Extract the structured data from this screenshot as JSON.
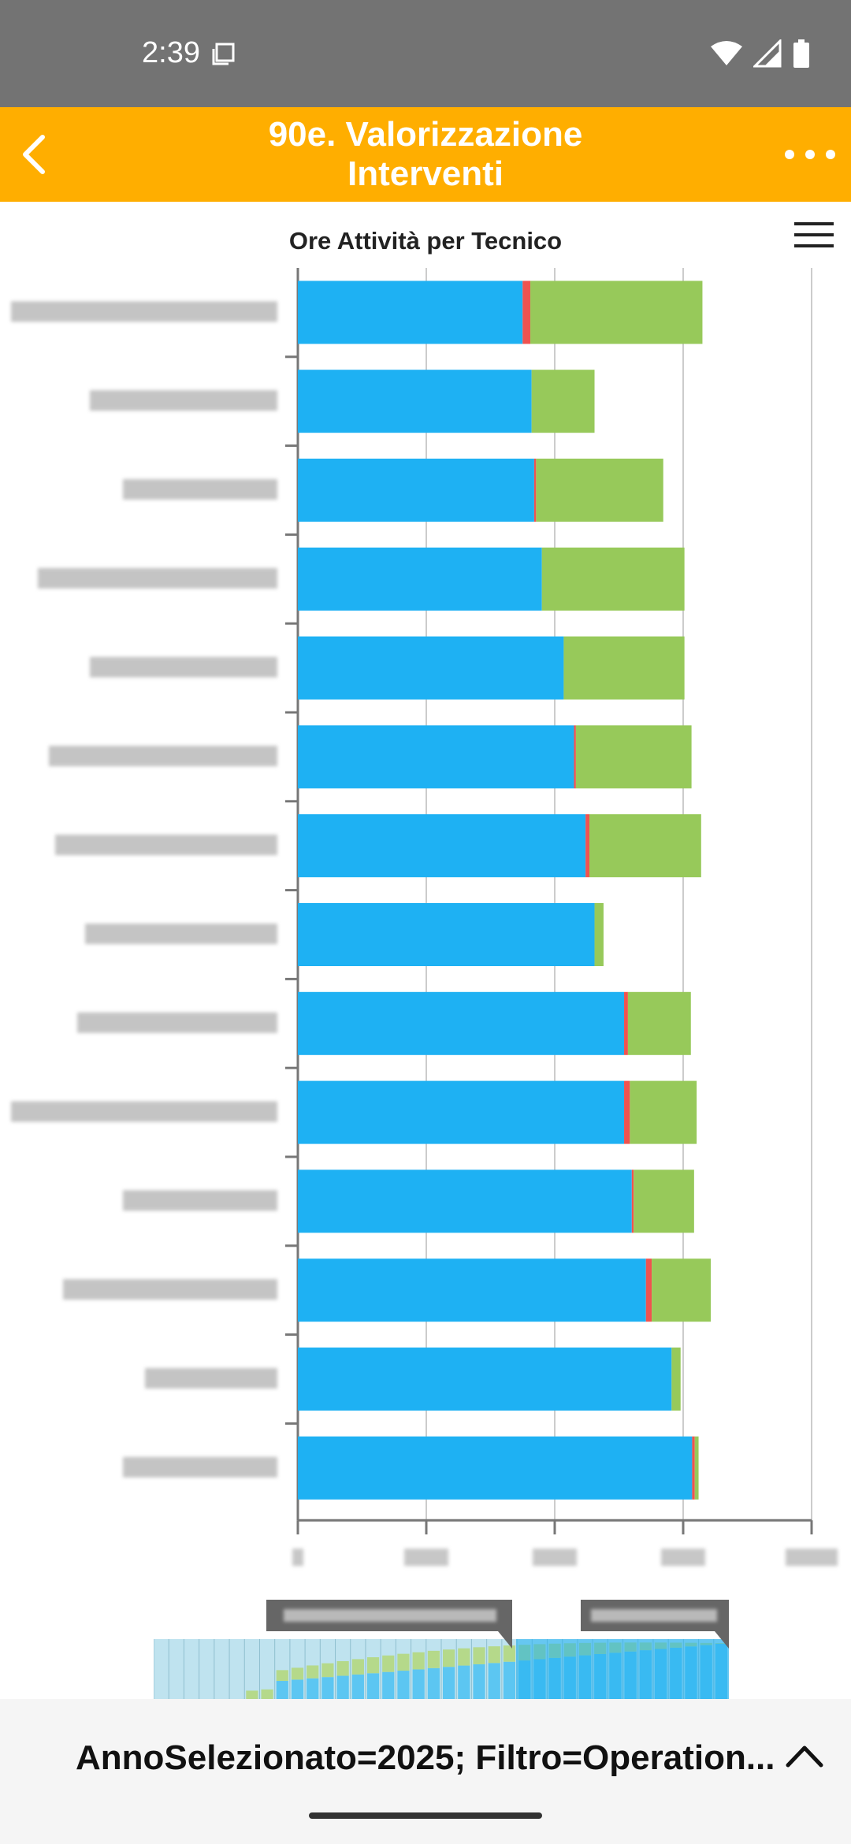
{
  "status_bar": {
    "time": "2:39"
  },
  "app_bar": {
    "title_line1": "90e. Valorizzazione",
    "title_line2": "Interventi"
  },
  "chart": {
    "title": "Ore Attività per Tecnico"
  },
  "chart_data": {
    "type": "bar",
    "orientation": "horizontal",
    "stacked": true,
    "title": "Ore Attività per Tecnico",
    "xlim": [
      0,
      4000
    ],
    "grid": true,
    "colors": [
      "#1EB1F3",
      "#EF5350",
      "#97C95A"
    ],
    "note": "category names and x tick labels are blurred/redacted in the screenshot",
    "series": [
      {
        "name": "",
        "color": "#1EB1F3",
        "values": [
          1750,
          1820,
          1840,
          1900,
          2070,
          2150,
          2240,
          2310,
          2540,
          2540,
          2600,
          2710,
          2910,
          3070
        ]
      },
      {
        "name": "",
        "color": "#EF5350",
        "values": [
          60,
          0,
          15,
          0,
          0,
          15,
          30,
          0,
          30,
          45,
          15,
          45,
          0,
          20
        ]
      },
      {
        "name": "",
        "color": "#97C95A",
        "values": [
          1340,
          490,
          990,
          1110,
          940,
          900,
          870,
          70,
          490,
          520,
          470,
          460,
          70,
          30
        ]
      }
    ]
  },
  "bottom_sheet": {
    "filter_text": "AnnoSelezionato=2025; Filtro=Operation..."
  }
}
